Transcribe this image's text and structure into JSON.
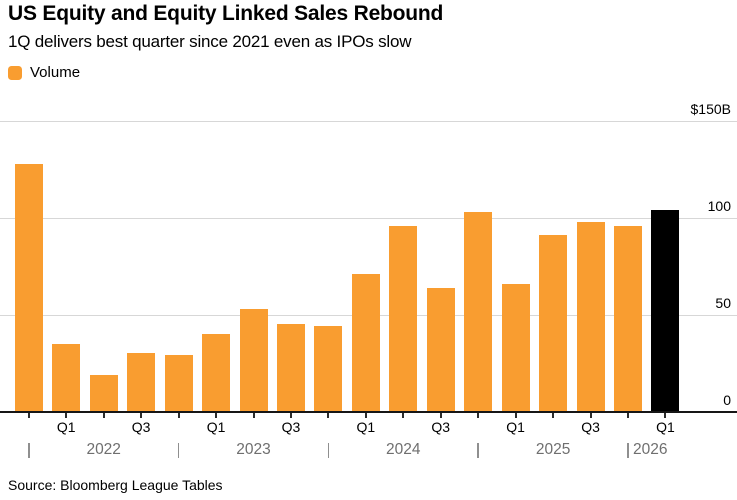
{
  "header": {
    "title": "US Equity and Equity Linked Sales Rebound",
    "subtitle": "1Q delivers best quarter since 2021 even as IPOs slow"
  },
  "legend": {
    "label": "Volume"
  },
  "source": "Source: Bloomberg League Tables",
  "colors": {
    "bar_default": "#F99D30",
    "bar_highlight": "#000000",
    "gridline": "#D7D7D7",
    "axis_line": "#161616",
    "year_text": "#6F6F6F",
    "text": "#000000",
    "background": "#FFFFFF"
  },
  "chart_data": {
    "type": "bar",
    "title": "US Equity and Equity Linked Sales Rebound",
    "subtitle": "1Q delivers best quarter since 2021 even as IPOs slow",
    "series_name": "Volume",
    "categories": [
      "Q4 2021",
      "Q1 2022",
      "Q2 2022",
      "Q3 2022",
      "Q4 2022",
      "Q1 2023",
      "Q2 2023",
      "Q3 2023",
      "Q4 2023",
      "Q1 2024",
      "Q2 2024",
      "Q3 2024",
      "Q4 2024",
      "Q1 2025",
      "Q2 2025",
      "Q3 2025",
      "Q4 2025",
      "Q1 2026"
    ],
    "values": [
      128,
      35,
      19,
      30,
      29,
      40,
      53,
      45,
      44,
      71,
      96,
      64,
      103,
      66,
      91,
      98,
      96,
      104
    ],
    "highlight_index": 17,
    "ylim": [
      0,
      150
    ],
    "y_ticks": [
      {
        "value": 0,
        "label": "0"
      },
      {
        "value": 50,
        "label": "50"
      },
      {
        "value": 100,
        "label": "100"
      },
      {
        "value": 150,
        "label": "$150B"
      }
    ],
    "x_quarter_labels": [
      {
        "bar": 1,
        "label": "Q1"
      },
      {
        "bar": 3,
        "label": "Q3"
      },
      {
        "bar": 5,
        "label": "Q1"
      },
      {
        "bar": 7,
        "label": "Q3"
      },
      {
        "bar": 9,
        "label": "Q1"
      },
      {
        "bar": 11,
        "label": "Q3"
      },
      {
        "bar": 13,
        "label": "Q1"
      },
      {
        "bar": 15,
        "label": "Q3"
      },
      {
        "bar": 17,
        "label": "Q1"
      }
    ],
    "year_separator_bars": [
      0,
      4,
      8,
      12,
      16
    ],
    "year_labels": [
      {
        "label": "2022"
      },
      {
        "label": "2023"
      },
      {
        "label": "2024"
      },
      {
        "label": "2025"
      },
      {
        "label": "2026",
        "align": "left"
      }
    ],
    "grid": "horizontal",
    "legend_position": "top-left",
    "y_labels_position": "right-above-line"
  }
}
